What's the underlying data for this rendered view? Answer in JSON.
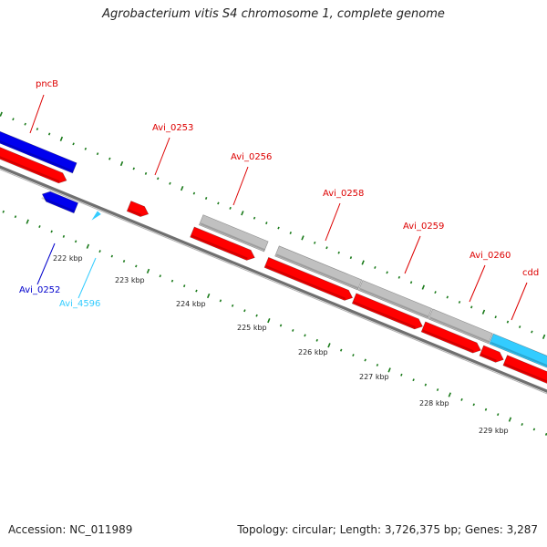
{
  "title": "Agrobacterium vitis S4 chromosome 1, complete genome",
  "footer": {
    "accession": "Accession: NC_011989",
    "summary": "Topology: circular; Length: 3,726,375 bp; Genes: 3,287"
  },
  "colors": {
    "forward_cds": "#ff0000",
    "reverse_cds": "#0000ee",
    "rna": "#33ccff",
    "other": "#c0c0c0",
    "tick": "#1a7a1a",
    "backbone": "#707070",
    "label_red": "#dd0000",
    "label_blue": "#0000cc",
    "label_cyan": "#33ccff"
  },
  "scale": {
    "ticks": [
      "222 kbp",
      "223 kbp",
      "224 kbp",
      "225 kbp",
      "226 kbp",
      "227 kbp",
      "228 kbp",
      "229 kbp"
    ]
  },
  "gene_labels": [
    {
      "id": "pncB",
      "text": "pncB",
      "color": "label_red"
    },
    {
      "id": "avi-0253",
      "text": "Avi_0253",
      "color": "label_red"
    },
    {
      "id": "avi-0256",
      "text": "Avi_0256",
      "color": "label_red"
    },
    {
      "id": "avi-0258",
      "text": "Avi_0258",
      "color": "label_red"
    },
    {
      "id": "avi-0259",
      "text": "Avi_0259",
      "color": "label_red"
    },
    {
      "id": "avi-0260",
      "text": "Avi_0260",
      "color": "label_red"
    },
    {
      "id": "cdd",
      "text": "cdd",
      "color": "label_red"
    },
    {
      "id": "avi-0252",
      "text": "Avi_0252",
      "color": "label_blue"
    },
    {
      "id": "avi-4596",
      "text": "Avi_4596",
      "color": "label_cyan"
    }
  ]
}
